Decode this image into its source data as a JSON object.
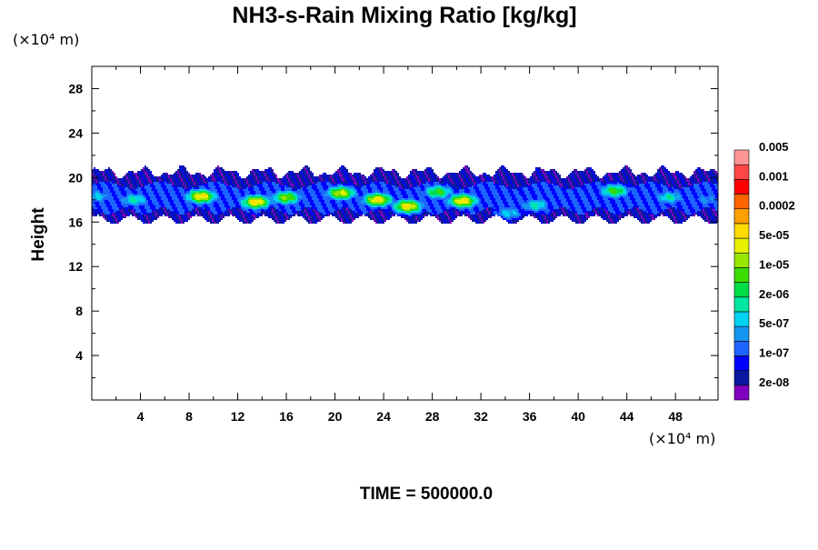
{
  "chart_data": {
    "type": "heatmap",
    "title": "NH3-s-Rain Mixing Ratio [kg/kg]",
    "ylabel": "Height",
    "xunit": "(×10⁴ m)",
    "yunit": "(×10⁴ m)",
    "xlim": [
      0,
      51.5
    ],
    "ylim": [
      0,
      30
    ],
    "xticks": [
      4,
      8,
      12,
      16,
      20,
      24,
      28,
      32,
      36,
      40,
      44,
      48
    ],
    "yticks": [
      4,
      8,
      12,
      16,
      20,
      24,
      28
    ],
    "layer": {
      "bottom": 16.2,
      "top": 20.5,
      "core_bottom": 17.0,
      "core_top": 19.3
    },
    "colorbar": {
      "colors": [
        "#8000c0",
        "#0a1aa0",
        "#0000ff",
        "#1e64ff",
        "#1496f0",
        "#00d2f0",
        "#00e6a0",
        "#00dc46",
        "#3cdc00",
        "#96e600",
        "#e6f000",
        "#ffdc00",
        "#ffa000",
        "#ff6400",
        "#ff0000",
        "#ff4646",
        "#ff9696"
      ],
      "labels": [
        "2e-08",
        "1e-07",
        "5e-07",
        "2e-06",
        "1e-05",
        "5e-05",
        "0.0002",
        "0.001",
        "0.005"
      ]
    },
    "maxima": [
      {
        "x": 9.0,
        "y": 18.3,
        "level": 13
      },
      {
        "x": 13.5,
        "y": 17.8,
        "level": 13
      },
      {
        "x": 16.0,
        "y": 18.2,
        "level": 11
      },
      {
        "x": 20.5,
        "y": 18.6,
        "level": 12
      },
      {
        "x": 23.5,
        "y": 18.0,
        "level": 13
      },
      {
        "x": 26.0,
        "y": 17.4,
        "level": 13
      },
      {
        "x": 30.5,
        "y": 17.9,
        "level": 13
      },
      {
        "x": 28.5,
        "y": 18.7,
        "level": 10
      },
      {
        "x": 3.5,
        "y": 18.0,
        "level": 8
      },
      {
        "x": 43.0,
        "y": 18.8,
        "level": 10
      },
      {
        "x": 47.5,
        "y": 18.2,
        "level": 8
      },
      {
        "x": 36.5,
        "y": 17.5,
        "level": 8
      },
      {
        "x": 34.3,
        "y": 16.8,
        "level": 7
      },
      {
        "x": 0.5,
        "y": 18.3,
        "level": 7
      },
      {
        "x": 50.5,
        "y": 18.0,
        "level": 6
      }
    ]
  },
  "time_label": "TIME = 500000.0"
}
